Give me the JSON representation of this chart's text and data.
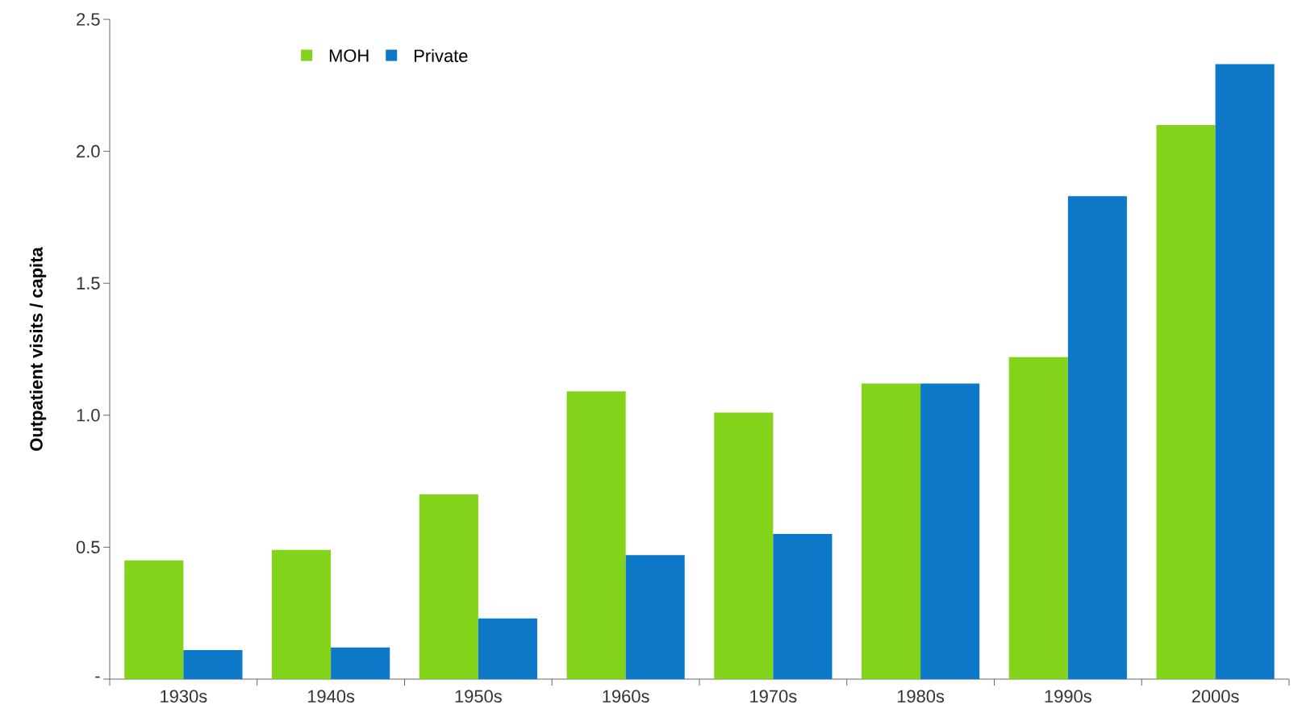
{
  "chart_data": {
    "type": "bar",
    "ylabel": "Outpatient visits / capita",
    "categories": [
      "1930s",
      "1940s",
      "1950s",
      "1960s",
      "1970s",
      "1980s",
      "1990s",
      "2000s"
    ],
    "series": [
      {
        "name": "MOH",
        "color": "#82d31a",
        "values": [
          0.45,
          0.49,
          0.7,
          1.09,
          1.01,
          1.12,
          1.22,
          2.1
        ]
      },
      {
        "name": "Private",
        "color": "#0e78c8",
        "values": [
          0.11,
          0.12,
          0.23,
          0.47,
          0.55,
          1.12,
          1.83,
          2.33
        ]
      }
    ],
    "ylim": [
      0,
      2.5
    ],
    "yticks": [
      {
        "value": 0,
        "label": "-"
      },
      0.5,
      {
        "value": 1,
        "label": "1.0"
      },
      1.5,
      {
        "value": 2,
        "label": "2.0"
      },
      2.5
    ],
    "legend": "top left",
    "grid": false
  }
}
